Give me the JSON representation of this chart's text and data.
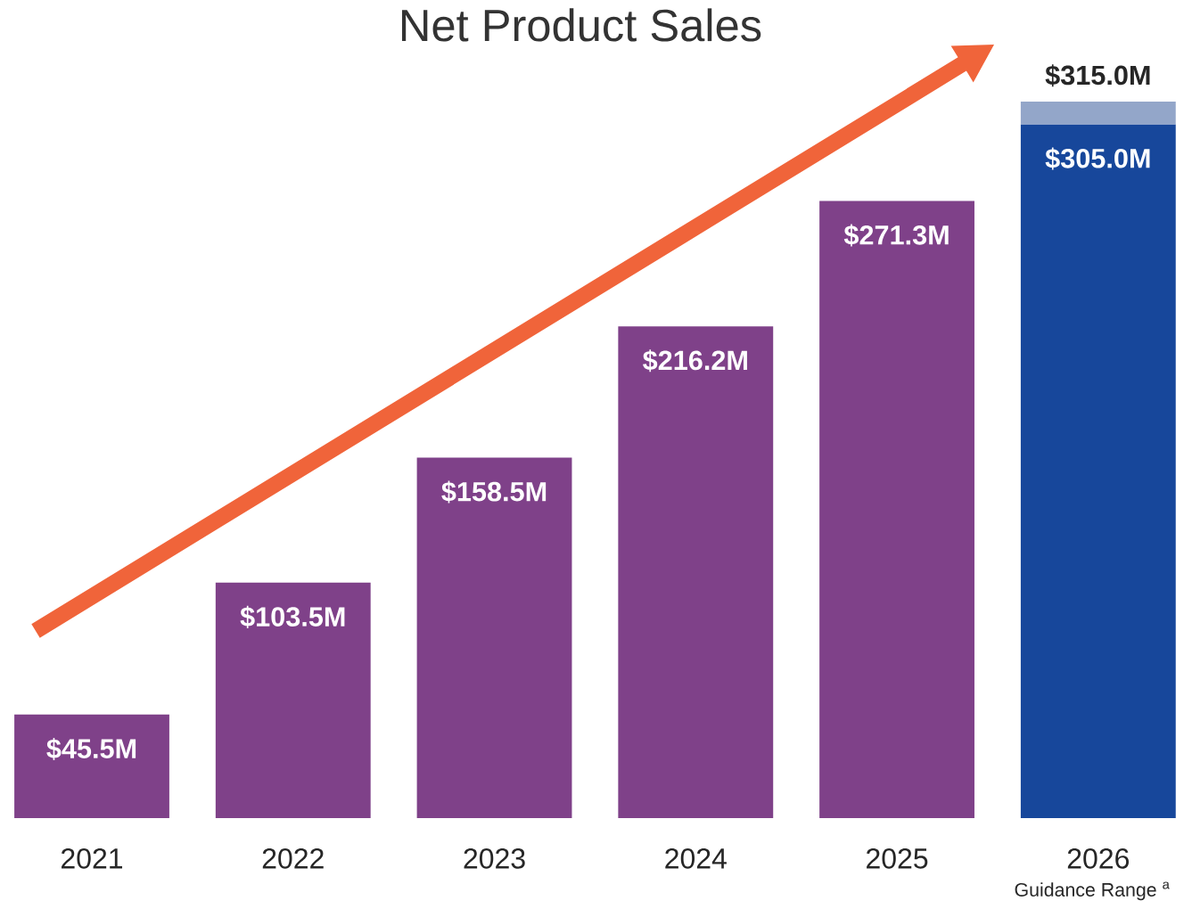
{
  "chart_data": {
    "type": "bar",
    "title": "Net Product Sales",
    "categories": [
      "2021",
      "2022",
      "2023",
      "2024",
      "2025",
      "2026"
    ],
    "stacked": true,
    "series": [
      {
        "colors": [
          "#7f4189",
          "#7f4189",
          "#7f4189",
          "#7f4189",
          "#7f4189",
          "#17479b"
        ],
        "values": [
          45.5,
          103.5,
          158.5,
          216.2,
          271.3,
          305.0
        ],
        "value_labels": [
          "$45.5M",
          "$103.5M",
          "$158.5M",
          "$216.2M",
          "$271.3M",
          "$305.0M"
        ]
      },
      {
        "color": "#93a6c9",
        "values": [
          null,
          null,
          null,
          null,
          null,
          10.0
        ]
      }
    ],
    "totals": [
      null,
      null,
      null,
      null,
      null,
      "$315.0M"
    ],
    "annotations": [
      "Guidance Range $^{a}$"
    ]
  }
}
